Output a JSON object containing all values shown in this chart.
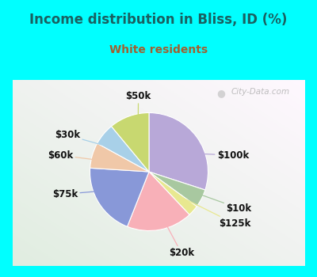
{
  "title": "Income distribution in Bliss, ID (%)",
  "subtitle": "White residents",
  "title_color": "#1a6060",
  "subtitle_color": "#a06030",
  "background_outer": "#00ffff",
  "watermark": "City-Data.com",
  "slices": [
    {
      "label": "$100k",
      "value": 30,
      "color": "#b8a8d8",
      "line_color": "#b8a8d8"
    },
    {
      "label": "$10k",
      "value": 5,
      "color": "#a8c8a0",
      "line_color": "#a8c8a0"
    },
    {
      "label": "$125k",
      "value": 3,
      "color": "#e8e890",
      "line_color": "#e8e890"
    },
    {
      "label": "$20k",
      "value": 18,
      "color": "#f8b0b8",
      "line_color": "#f8b0b8"
    },
    {
      "label": "$75k",
      "value": 20,
      "color": "#8898d8",
      "line_color": "#8898d8"
    },
    {
      "label": "$60k",
      "value": 7,
      "color": "#f0c8a8",
      "line_color": "#f0c8a8"
    },
    {
      "label": "$30k",
      "value": 6,
      "color": "#a8d0e8",
      "line_color": "#a8d0e8"
    },
    {
      "label": "$50k",
      "value": 11,
      "color": "#c8d870",
      "line_color": "#c8d870"
    }
  ],
  "label_fontsize": 8.5,
  "title_fontsize": 12,
  "subtitle_fontsize": 10
}
